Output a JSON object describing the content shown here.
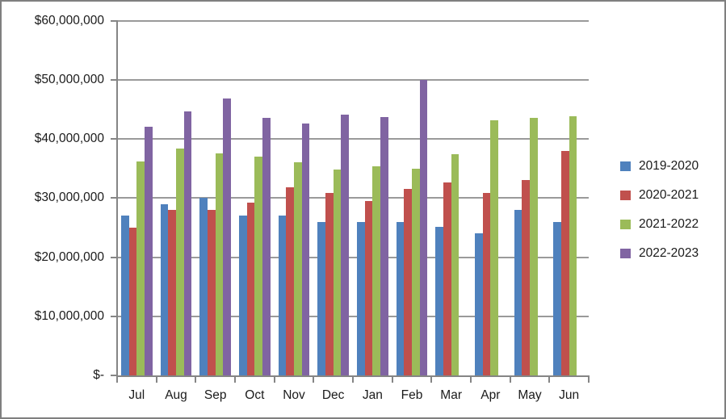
{
  "window": {
    "background": "#ffffff",
    "frame_border_color": "#7f7f7f"
  },
  "chart_data": {
    "type": "bar",
    "title": "",
    "xlabel": "",
    "ylabel": "",
    "categories": [
      "Jul",
      "Aug",
      "Sep",
      "Oct",
      "Nov",
      "Dec",
      "Jan",
      "Feb",
      "Mar",
      "Apr",
      "May",
      "Jun"
    ],
    "series": [
      {
        "name": "2019-2020",
        "color": "#4F81BD",
        "values": [
          27000000,
          29000000,
          30000000,
          27000000,
          27000000,
          26000000,
          26000000,
          26000000,
          25100000,
          24000000,
          28000000,
          26000000
        ]
      },
      {
        "name": "2020-2021",
        "color": "#C0504D",
        "values": [
          25000000,
          28000000,
          28000000,
          29200000,
          31800000,
          30800000,
          29500000,
          31500000,
          32600000,
          30800000,
          33000000,
          37900000
        ]
      },
      {
        "name": "2021-2022",
        "color": "#9BBB59",
        "values": [
          36200000,
          38400000,
          37600000,
          37000000,
          36100000,
          34800000,
          35400000,
          35000000,
          37400000,
          43100000,
          43600000,
          43800000
        ]
      },
      {
        "name": "2022-2023",
        "color": "#8064A2",
        "values": [
          42000000,
          44700000,
          46800000,
          43500000,
          42600000,
          44100000,
          43700000,
          50000000,
          null,
          null,
          null,
          null
        ]
      }
    ],
    "y_axis": {
      "min": 0,
      "max": 60000000,
      "step": 10000000,
      "tick_labels": [
        "$-",
        "$10,000,000",
        "$20,000,000",
        "$30,000,000",
        "$40,000,000",
        "$50,000,000",
        "$60,000,000"
      ]
    },
    "grid": true,
    "legend_position": "right",
    "legend_entries": [
      "2019-2020",
      "2020-2021",
      "2021-2022",
      "2022-2023"
    ]
  },
  "colors": {
    "gridline": "#9a9a9a",
    "axis": "#858585",
    "text": "#1a1a1a"
  }
}
